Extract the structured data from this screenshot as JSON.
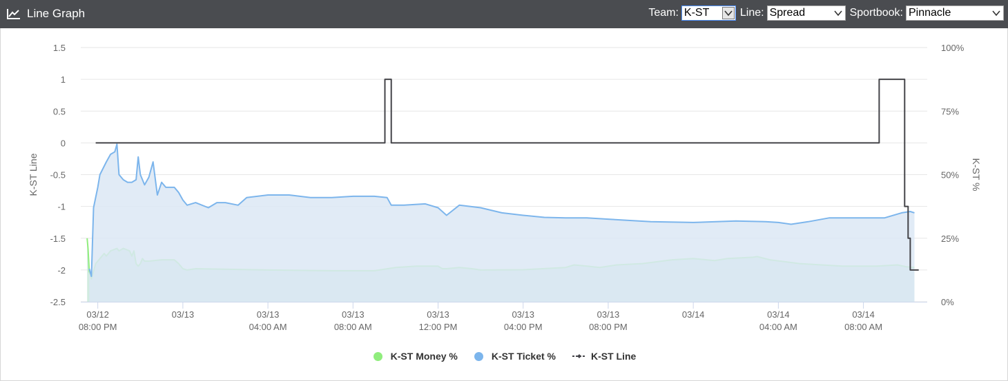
{
  "header": {
    "title": "Line Graph",
    "team_label": "Team:",
    "team_value": "K-ST",
    "line_label": "Line:",
    "line_value": "Spread",
    "sportbook_label": "Sportbook:",
    "sportbook_value": "Pinnacle"
  },
  "chart_data": {
    "type": "line",
    "left_axis": {
      "label": "K-ST Line",
      "ticks": [
        "1.5",
        "1",
        "0.5",
        "0",
        "-0.5",
        "-1",
        "-1.5",
        "-2",
        "-2.5"
      ],
      "range": [
        -2.5,
        1.5
      ]
    },
    "right_axis": {
      "label": "K-ST %",
      "ticks": [
        "100%",
        "75%",
        "50%",
        "25%",
        "0%"
      ],
      "range": [
        0,
        100
      ]
    },
    "x_axis": {
      "unit": "hours after 03/12 08:00 PM",
      "range": [
        -0.4,
        19.5
      ],
      "ticks": [
        {
          "t": 0,
          "l1": "03/12",
          "l2": "08:00 PM"
        },
        {
          "t": 2,
          "l1": "03/13",
          "l2": ""
        },
        {
          "t": 4,
          "l1": "03/13",
          "l2": "04:00 AM"
        },
        {
          "t": 6,
          "l1": "03/13",
          "l2": "08:00 AM"
        },
        {
          "t": 8,
          "l1": "03/13",
          "l2": "12:00 PM"
        },
        {
          "t": 10,
          "l1": "03/13",
          "l2": "04:00 PM"
        },
        {
          "t": 12,
          "l1": "03/13",
          "l2": "08:00 PM"
        },
        {
          "t": 14,
          "l1": "03/14",
          "l2": ""
        },
        {
          "t": 16,
          "l1": "03/14",
          "l2": "04:00 AM"
        },
        {
          "t": 18,
          "l1": "03/14",
          "l2": "08:00 AM"
        }
      ]
    },
    "series": [
      {
        "name": "K-ST Money %",
        "color": "#90ed7d",
        "fill": "#c9e8da",
        "axis": "right",
        "points": [
          [
            -0.25,
            25
          ],
          [
            -0.23,
            21
          ],
          [
            -0.2,
            12
          ],
          [
            -0.15,
            9
          ],
          [
            -0.1,
            12
          ],
          [
            -0.05,
            15
          ],
          [
            0.05,
            17
          ],
          [
            0.15,
            19
          ],
          [
            0.2,
            18
          ],
          [
            0.3,
            20
          ],
          [
            0.45,
            21
          ],
          [
            0.5,
            20
          ],
          [
            0.6,
            21
          ],
          [
            0.75,
            20
          ],
          [
            0.8,
            18
          ],
          [
            0.85,
            20
          ],
          [
            0.9,
            15
          ],
          [
            0.95,
            14
          ],
          [
            1.0,
            15
          ],
          [
            1.05,
            17
          ],
          [
            1.1,
            16
          ],
          [
            1.2,
            16
          ],
          [
            1.5,
            16.5
          ],
          [
            1.8,
            16.5
          ],
          [
            1.9,
            15
          ],
          [
            2.0,
            13
          ],
          [
            2.1,
            12.5
          ],
          [
            2.3,
            13
          ],
          [
            4,
            12.5
          ],
          [
            5.5,
            12.2
          ],
          [
            6.5,
            12.2
          ],
          [
            7.0,
            13.5
          ],
          [
            7.5,
            14
          ],
          [
            8.0,
            14
          ],
          [
            8.1,
            13
          ],
          [
            8.2,
            13
          ],
          [
            8.5,
            13.5
          ],
          [
            8.8,
            13
          ],
          [
            9.0,
            12.5
          ],
          [
            10,
            12.6
          ],
          [
            11,
            13.5
          ],
          [
            11.2,
            14.5
          ],
          [
            11.5,
            14
          ],
          [
            11.8,
            13.5
          ],
          [
            12.2,
            14.5
          ],
          [
            12.8,
            15
          ],
          [
            13.5,
            16.5
          ],
          [
            14,
            17
          ],
          [
            14.5,
            16.2
          ],
          [
            14.8,
            17
          ],
          [
            15.4,
            17.5
          ],
          [
            15.5,
            17.8
          ],
          [
            15.8,
            16.5
          ],
          [
            16.5,
            15
          ],
          [
            17.5,
            14
          ],
          [
            18.3,
            14
          ],
          [
            18.8,
            14.5
          ],
          [
            19.0,
            13.8
          ],
          [
            19.2,
            13.5
          ]
        ]
      },
      {
        "name": "K-ST Ticket %",
        "color": "#7cb5ec",
        "fill": "#dce8f5",
        "axis": "right",
        "points": [
          [
            -0.2,
            13
          ],
          [
            -0.15,
            10
          ],
          [
            -0.1,
            37
          ],
          [
            0,
            45
          ],
          [
            0.05,
            50
          ],
          [
            0.2,
            55
          ],
          [
            0.3,
            58
          ],
          [
            0.4,
            59
          ],
          [
            0.45,
            62
          ],
          [
            0.5,
            50
          ],
          [
            0.6,
            48
          ],
          [
            0.7,
            47
          ],
          [
            0.8,
            47
          ],
          [
            0.9,
            48
          ],
          [
            0.95,
            57
          ],
          [
            1.0,
            50
          ],
          [
            1.1,
            46
          ],
          [
            1.2,
            49
          ],
          [
            1.3,
            55
          ],
          [
            1.4,
            42
          ],
          [
            1.5,
            47
          ],
          [
            1.6,
            45
          ],
          [
            1.8,
            45
          ],
          [
            1.9,
            43
          ],
          [
            2.0,
            40
          ],
          [
            2.1,
            38
          ],
          [
            2.3,
            39
          ],
          [
            2.6,
            37
          ],
          [
            2.8,
            39
          ],
          [
            3.0,
            39
          ],
          [
            3.3,
            38
          ],
          [
            3.5,
            41
          ],
          [
            4.0,
            42
          ],
          [
            4.5,
            42
          ],
          [
            5.0,
            41
          ],
          [
            5.5,
            41
          ],
          [
            6.0,
            41.5
          ],
          [
            6.5,
            41.5
          ],
          [
            6.8,
            41
          ],
          [
            6.9,
            38
          ],
          [
            7.2,
            38
          ],
          [
            7.7,
            38.5
          ],
          [
            8.0,
            37
          ],
          [
            8.2,
            34
          ],
          [
            8.5,
            38
          ],
          [
            9.0,
            37
          ],
          [
            9.5,
            35
          ],
          [
            10.0,
            34
          ],
          [
            10.5,
            33.2
          ],
          [
            11.0,
            33
          ],
          [
            11.5,
            33
          ],
          [
            12.0,
            32.5
          ],
          [
            13.0,
            31.5
          ],
          [
            14.0,
            31.2
          ],
          [
            15.0,
            31.8
          ],
          [
            15.7,
            31.5
          ],
          [
            16.0,
            31.2
          ],
          [
            16.3,
            30.5
          ],
          [
            16.7,
            31.5
          ],
          [
            17.2,
            33
          ],
          [
            17.6,
            33
          ],
          [
            18.5,
            33
          ],
          [
            18.9,
            35
          ],
          [
            19.1,
            35.5
          ],
          [
            19.2,
            35
          ]
        ]
      },
      {
        "name": "K-ST Line",
        "color": "#434348",
        "axis": "left",
        "step": true,
        "points": [
          [
            -0.05,
            0
          ],
          [
            6.75,
            0
          ],
          [
            6.75,
            1
          ],
          [
            6.9,
            1
          ],
          [
            6.9,
            0
          ],
          [
            18.37,
            0
          ],
          [
            18.37,
            1
          ],
          [
            18.97,
            1
          ],
          [
            18.97,
            -1
          ],
          [
            19.05,
            -1
          ],
          [
            19.05,
            -1.5
          ],
          [
            19.1,
            -1.5
          ],
          [
            19.1,
            -2
          ],
          [
            19.3,
            -2
          ]
        ]
      }
    ],
    "legend": {
      "position": "bottom-center",
      "items": [
        "K-ST Money %",
        "K-ST Ticket %",
        "K-ST Line"
      ]
    },
    "grid": true
  }
}
